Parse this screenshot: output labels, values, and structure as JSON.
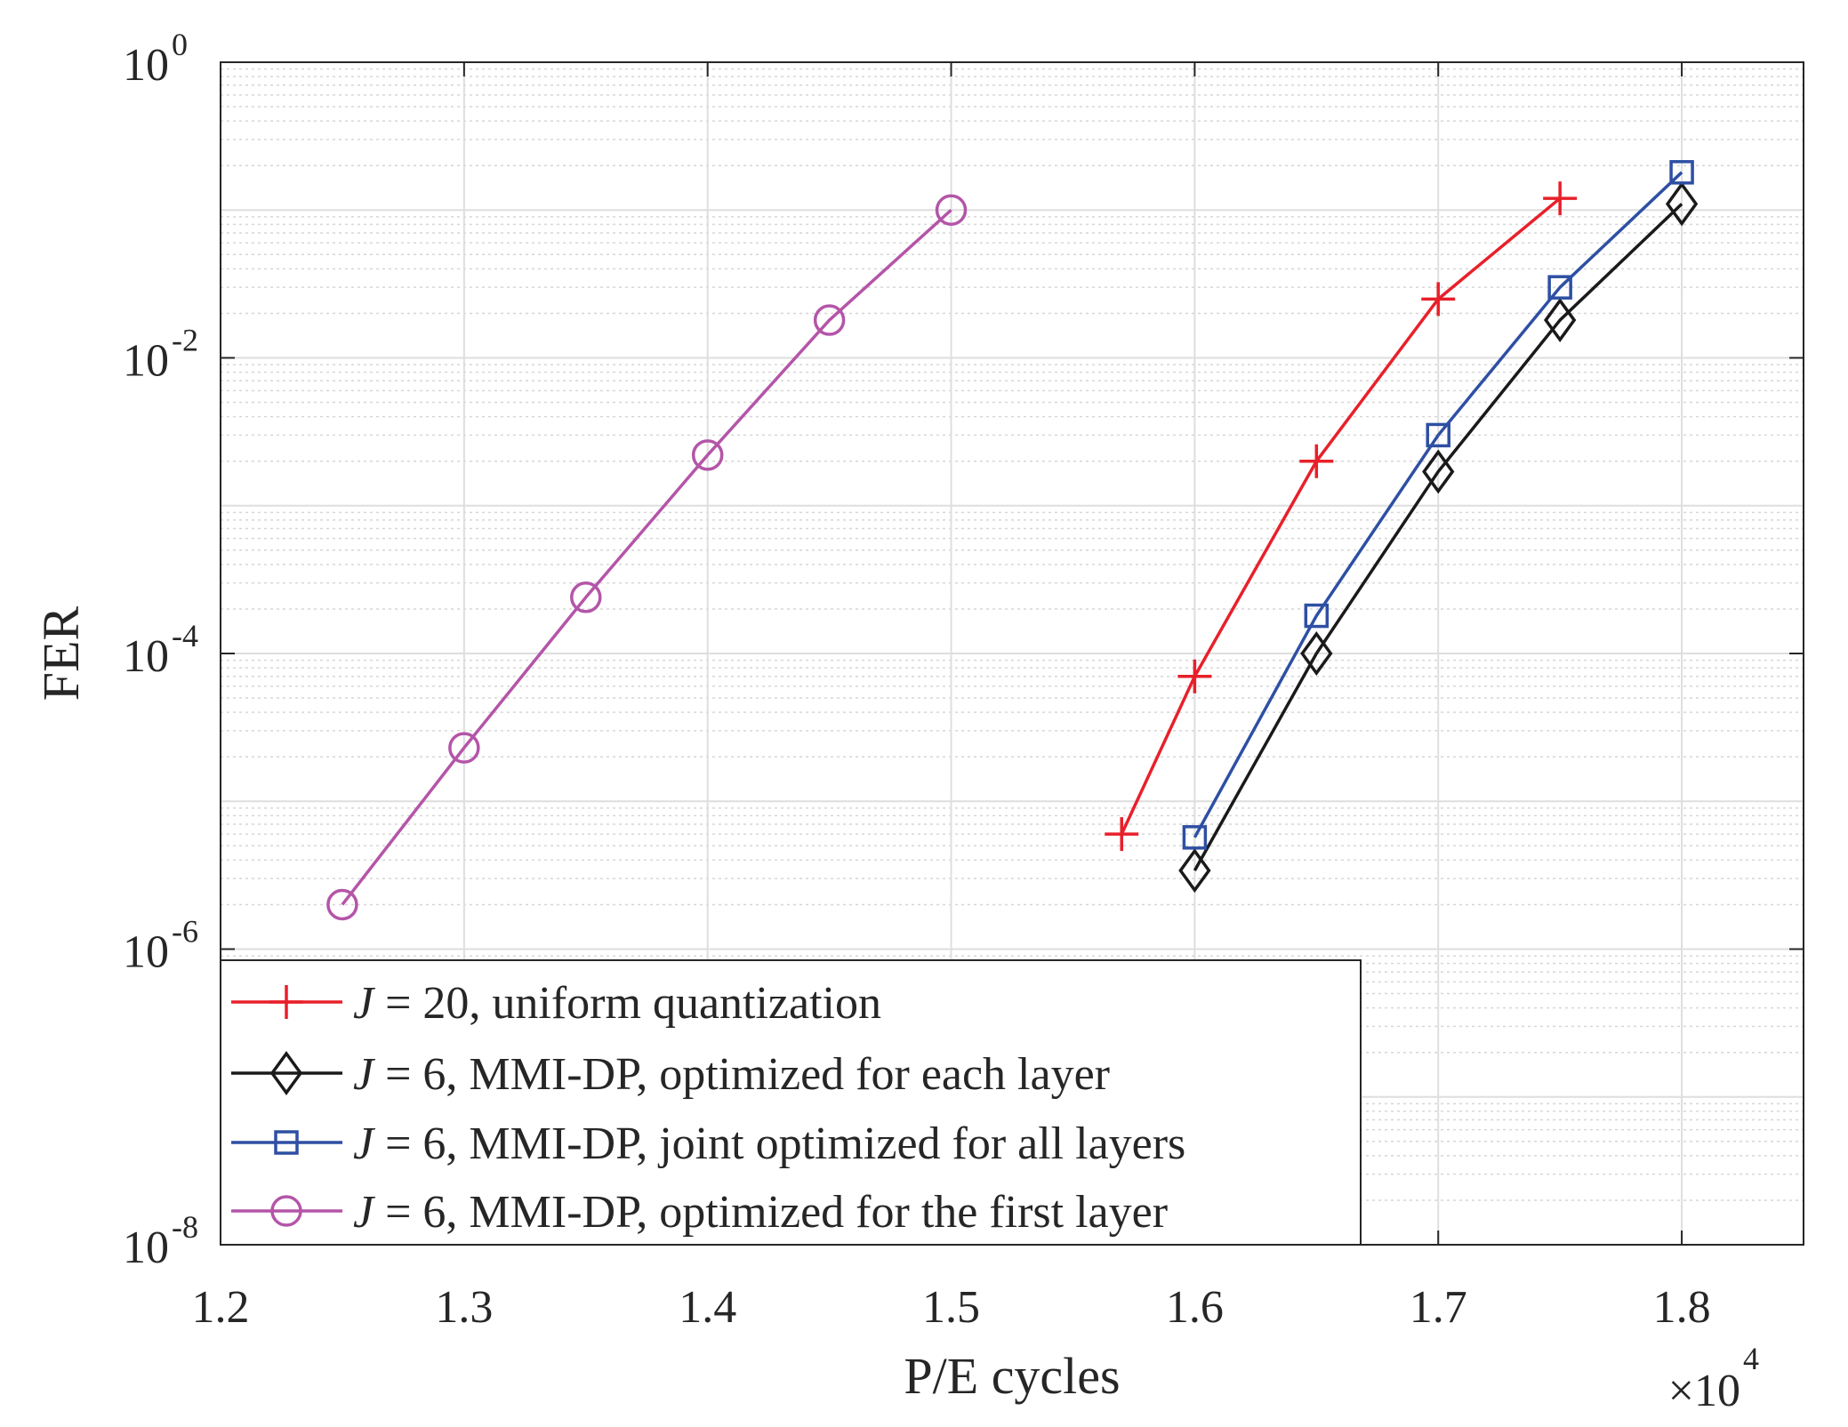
{
  "chart_data": {
    "type": "line",
    "ylabel": "FER",
    "xlabel": "P/E cycles",
    "x_multiplier": {
      "base": "×10",
      "exp": "4"
    },
    "yscale": "log",
    "xlim": [
      1.2,
      1.85
    ],
    "ylim": [
      1e-08,
      1
    ],
    "x_ticks": [
      {
        "value": 1.2,
        "label": "1.2"
      },
      {
        "value": 1.3,
        "label": "1.3"
      },
      {
        "value": 1.4,
        "label": "1.4"
      },
      {
        "value": 1.5,
        "label": "1.5"
      },
      {
        "value": 1.6,
        "label": "1.6"
      },
      {
        "value": 1.7,
        "label": "1.7"
      },
      {
        "value": 1.8,
        "label": "1.8"
      }
    ],
    "y_ticks": [
      {
        "value": 1,
        "base": "10",
        "exp": "0"
      },
      {
        "value": 0.01,
        "base": "10",
        "exp": "-2"
      },
      {
        "value": 0.0001,
        "base": "10",
        "exp": "-4"
      },
      {
        "value": 1e-06,
        "base": "10",
        "exp": "-6"
      },
      {
        "value": 1e-08,
        "base": "10",
        "exp": "-8"
      }
    ],
    "grid": true,
    "legend_position": "bottom-left",
    "series": [
      {
        "name": "J = 20, uniform quantization",
        "legend_var": "J",
        "legend_rest": " = 20, uniform quantization",
        "color": "#e8202a",
        "marker": "plus",
        "x": [
          1.57,
          1.6,
          1.65,
          1.7,
          1.75
        ],
        "y": [
          6e-06,
          7e-05,
          0.002,
          0.025,
          0.12
        ]
      },
      {
        "name": "J = 6, MMI-DP, optimized for each layer",
        "legend_var": "J",
        "legend_rest": " = 6, MMI-DP, optimized for each layer",
        "color": "#1a1a1a",
        "marker": "diamond",
        "x": [
          1.6,
          1.65,
          1.7,
          1.75,
          1.8
        ],
        "y": [
          3.4e-06,
          0.0001,
          0.0017,
          0.018,
          0.11
        ]
      },
      {
        "name": "J = 6, MMI-DP, joint optimized for all layers",
        "legend_var": "J",
        "legend_rest": " = 6, MMI-DP, joint optimized for all layers",
        "color": "#2e4fa3",
        "marker": "square",
        "x": [
          1.6,
          1.65,
          1.7,
          1.75,
          1.8
        ],
        "y": [
          5.7e-06,
          0.00018,
          0.003,
          0.03,
          0.18
        ]
      },
      {
        "name": "J = 6, MMI-DP, optimized for the first layer",
        "legend_var": "J",
        "legend_rest": " = 6, MMI-DP, optimized for the first layer",
        "color": "#b455a8",
        "marker": "circle",
        "x": [
          1.25,
          1.3,
          1.35,
          1.4,
          1.45,
          1.5
        ],
        "y": [
          2e-06,
          2.3e-05,
          0.00024,
          0.0022,
          0.018,
          0.1
        ]
      }
    ]
  }
}
